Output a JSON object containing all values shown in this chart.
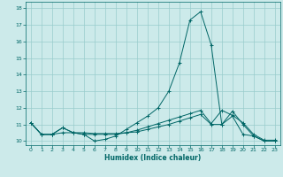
{
  "xlabel": "Humidex (Indice chaleur)",
  "bg_color": "#cceaea",
  "line_color": "#006666",
  "grid_color": "#99cccc",
  "xlim": [
    -0.5,
    23.5
  ],
  "ylim": [
    9.75,
    18.4
  ],
  "yticks": [
    10,
    11,
    12,
    13,
    14,
    15,
    16,
    17,
    18
  ],
  "xticks": [
    0,
    1,
    2,
    3,
    4,
    5,
    6,
    7,
    8,
    9,
    10,
    11,
    12,
    13,
    14,
    15,
    16,
    17,
    18,
    19,
    20,
    21,
    22,
    23
  ],
  "series": [
    [
      11.1,
      10.4,
      10.4,
      10.8,
      10.5,
      10.4,
      10.0,
      10.1,
      10.3,
      10.7,
      11.1,
      11.5,
      12.0,
      13.0,
      14.7,
      17.3,
      17.8,
      15.8,
      11.0,
      11.8,
      11.0,
      10.3,
      10.0,
      10.0
    ],
    [
      11.1,
      10.4,
      10.4,
      10.8,
      10.5,
      10.5,
      10.45,
      10.45,
      10.45,
      10.5,
      10.65,
      10.85,
      11.05,
      11.25,
      11.45,
      11.65,
      11.85,
      11.05,
      11.85,
      11.55,
      11.1,
      10.4,
      10.05,
      10.05
    ],
    [
      11.1,
      10.4,
      10.4,
      10.5,
      10.5,
      10.4,
      10.4,
      10.4,
      10.4,
      10.5,
      10.55,
      10.7,
      10.85,
      11.0,
      11.2,
      11.4,
      11.6,
      11.0,
      11.0,
      11.5,
      10.4,
      10.3,
      10.0,
      10.0
    ]
  ]
}
